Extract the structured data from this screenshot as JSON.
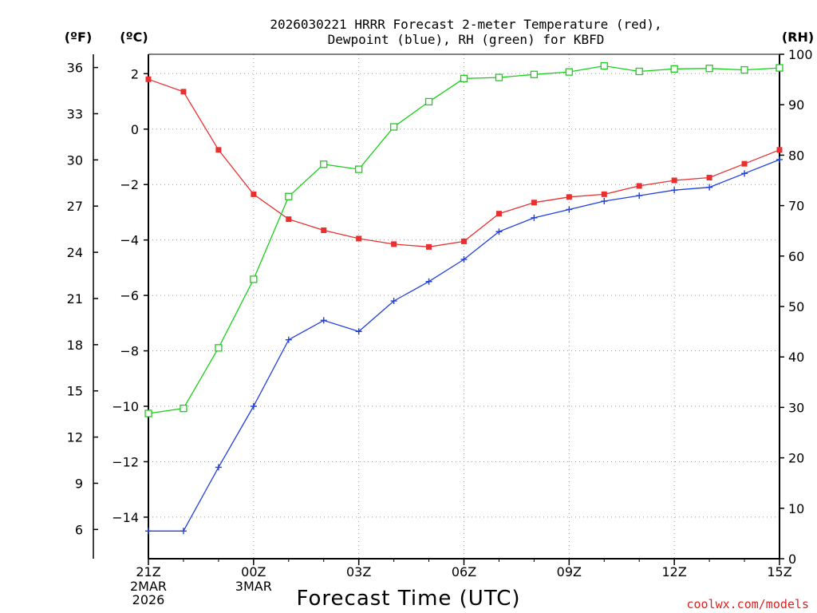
{
  "chart_data": {
    "type": "line",
    "title": [
      "2026030221 HRRR Forecast 2-meter Temperature (red),",
      "Dewpoint (blue), RH (green) for KBFD"
    ],
    "xlabel": "Forecast Time (UTC)",
    "credit": "coolwx.com/models",
    "x_hours": [
      0,
      1,
      2,
      3,
      4,
      5,
      6,
      7,
      8,
      9,
      10,
      11,
      12,
      13,
      14,
      15,
      16,
      17,
      18
    ],
    "xlim": [
      0,
      18
    ],
    "x_ticks": [
      {
        "hour": 0,
        "label": "21Z",
        "sub": [
          "2MAR",
          "2026"
        ]
      },
      {
        "hour": 3,
        "label": "00Z",
        "sub": [
          "3MAR"
        ]
      },
      {
        "hour": 6,
        "label": "03Z",
        "sub": []
      },
      {
        "hour": 9,
        "label": "06Z",
        "sub": []
      },
      {
        "hour": 12,
        "label": "09Z",
        "sub": []
      },
      {
        "hour": 15,
        "label": "12Z",
        "sub": []
      },
      {
        "hour": 18,
        "label": "15Z",
        "sub": []
      }
    ],
    "left_axis_c": {
      "unit": "(ºC)",
      "ylim": [
        -15.5,
        2.7
      ],
      "ticks": [
        2,
        0,
        -2,
        -4,
        -6,
        -8,
        -10,
        -12,
        -14
      ]
    },
    "left_axis_f": {
      "unit": "(ºF)",
      "ticks": [
        36,
        33,
        30,
        27,
        24,
        21,
        18,
        15,
        12,
        9,
        6
      ]
    },
    "right_axis_rh": {
      "unit": "(RH)",
      "ylim": [
        0,
        100
      ],
      "ticks": [
        100,
        90,
        80,
        70,
        60,
        50,
        40,
        30,
        20,
        10,
        0
      ]
    },
    "series": [
      {
        "name": "Temperature",
        "unit": "C",
        "color": "#e83030",
        "marker": "filled-square",
        "values": [
          1.8,
          1.35,
          -0.75,
          -2.35,
          -3.25,
          -3.65,
          -3.95,
          -4.15,
          -4.25,
          -4.05,
          -3.05,
          -2.65,
          -2.45,
          -2.35,
          -2.05,
          -1.85,
          -1.75,
          -1.25,
          -0.75
        ]
      },
      {
        "name": "Dewpoint",
        "unit": "C",
        "color": "#2040e0",
        "marker": "plus",
        "values": [
          -14.5,
          -14.5,
          -12.2,
          -10.0,
          -7.6,
          -6.9,
          -7.3,
          -6.2,
          -5.5,
          -4.7,
          -3.7,
          -3.2,
          -2.9,
          -2.6,
          -2.4,
          -2.2,
          -2.1,
          -1.6,
          -1.1
        ]
      },
      {
        "name": "RH",
        "unit": "%",
        "color": "#18d018",
        "marker": "open-square",
        "values": [
          28.8,
          29.8,
          41.8,
          55.4,
          71.8,
          78.2,
          77.2,
          85.6,
          90.6,
          95.2,
          95.4,
          96.0,
          96.5,
          97.7,
          96.6,
          97.1,
          97.2,
          96.9,
          97.3
        ]
      }
    ]
  }
}
